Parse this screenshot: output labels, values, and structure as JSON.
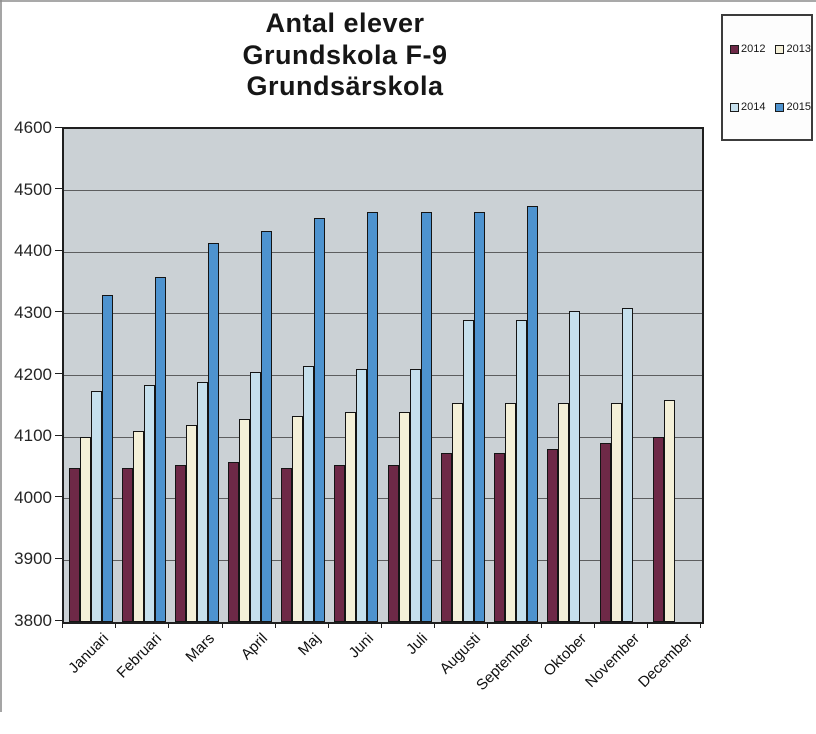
{
  "page": {
    "background": "#ffffff",
    "artifact_colors": {
      "top_edge": "#a9a9a9",
      "left_edge": "#8f8f8f"
    }
  },
  "chart_data": {
    "type": "bar",
    "title_lines": [
      "Antal elever",
      "Grundskola F-9",
      "Grundsärskola"
    ],
    "categories": [
      "Januari",
      "Februari",
      "Mars",
      "April",
      "Maj",
      "Juni",
      "Juli",
      "Augusti",
      "September",
      "Oktober",
      "November",
      "December"
    ],
    "series": [
      {
        "name": "2012",
        "color": "#6e2947",
        "values": [
          4050,
          4050,
          4055,
          4060,
          4050,
          4055,
          4055,
          4075,
          4075,
          4080,
          4090,
          4100
        ]
      },
      {
        "name": "2013",
        "color": "#f4f0d8",
        "values": [
          4100,
          4110,
          4120,
          4130,
          4135,
          4140,
          4140,
          4155,
          4155,
          4155,
          4155,
          4160
        ]
      },
      {
        "name": "2014",
        "color": "#c6e0ed",
        "values": [
          4175,
          4185,
          4190,
          4205,
          4215,
          4210,
          4210,
          4290,
          4290,
          4305,
          4310,
          null
        ]
      },
      {
        "name": "2015",
        "color": "#4e93cf",
        "values": [
          4330,
          4360,
          4415,
          4435,
          4455,
          4465,
          4465,
          4465,
          4475,
          null,
          null,
          null
        ]
      }
    ],
    "ylim": [
      3800,
      4600
    ],
    "ytick_step": 100,
    "yticks": [
      "4600",
      "4500",
      "4400",
      "4300",
      "4200",
      "4100",
      "4000",
      "3900",
      "3800"
    ],
    "grid": true,
    "legend_position": "top-right",
    "legend_layout": [
      [
        "2012",
        "2013"
      ],
      [
        "2014",
        "2015"
      ]
    ],
    "plot_bg": "#cbd1d5",
    "bar_outline": "#141414",
    "gridline_color": "#4a4a4a"
  }
}
